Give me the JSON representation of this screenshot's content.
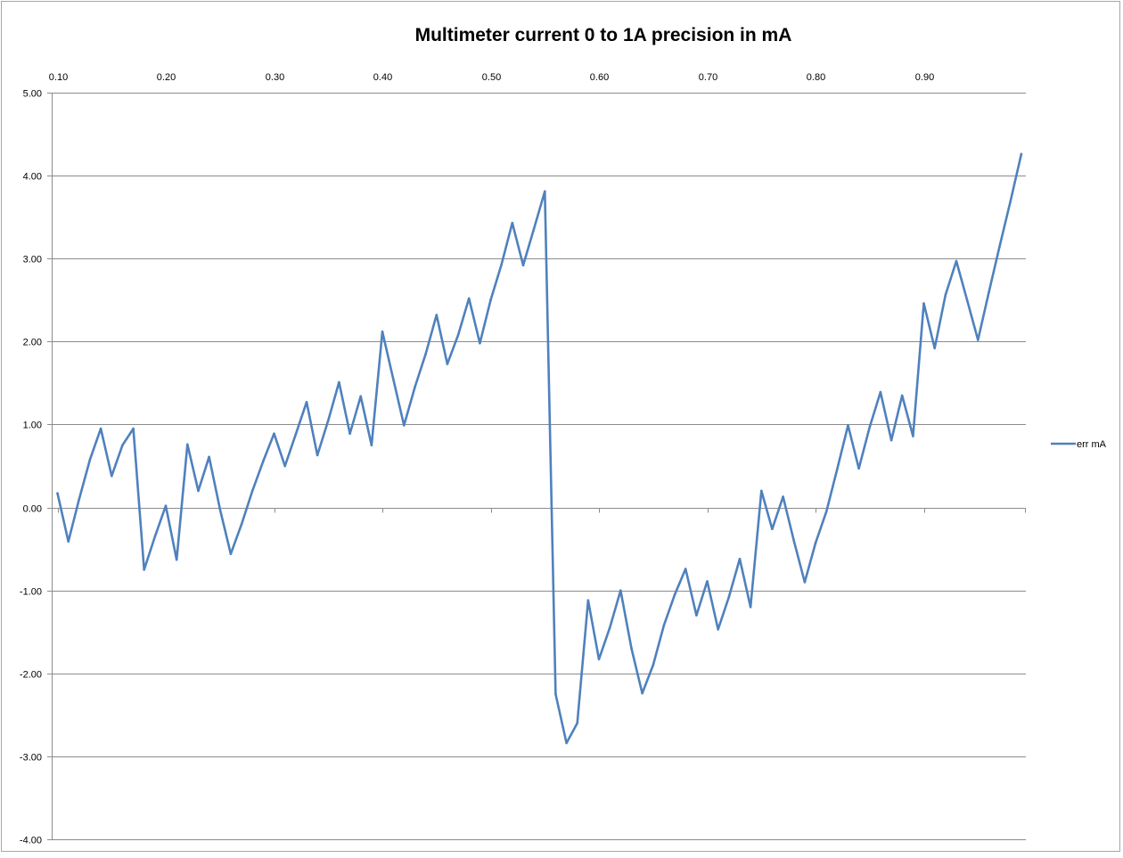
{
  "chart_data": {
    "type": "line",
    "title": "Multimeter current 0 to 1A precision in mA",
    "xlabel": "",
    "ylabel": "",
    "x_axis_position": "top",
    "ylim": [
      -4,
      5
    ],
    "y_ticks": [
      "5.00",
      "4.00",
      "3.00",
      "2.00",
      "1.00",
      "0.00",
      "-1.00",
      "-2.00",
      "-3.00",
      "-4.00"
    ],
    "x_ticks": [
      "0.10",
      "0.20",
      "0.30",
      "0.40",
      "0.50",
      "0.60",
      "0.70",
      "0.80",
      "0.90"
    ],
    "grid": "horizontal",
    "legend_position": "right",
    "line_color": "#4f81bd",
    "series": [
      {
        "name": "err mA",
        "x": [
          0.1,
          0.11,
          0.12,
          0.13,
          0.14,
          0.15,
          0.16,
          0.17,
          0.18,
          0.19,
          0.2,
          0.21,
          0.22,
          0.23,
          0.24,
          0.25,
          0.26,
          0.27,
          0.28,
          0.29,
          0.3,
          0.31,
          0.32,
          0.33,
          0.34,
          0.35,
          0.36,
          0.37,
          0.38,
          0.39,
          0.4,
          0.41,
          0.42,
          0.43,
          0.44,
          0.45,
          0.46,
          0.47,
          0.48,
          0.49,
          0.5,
          0.51,
          0.52,
          0.53,
          0.54,
          0.55,
          0.56,
          0.57,
          0.58,
          0.59,
          0.6,
          0.61,
          0.62,
          0.63,
          0.64,
          0.65,
          0.66,
          0.67,
          0.68,
          0.69,
          0.7,
          0.71,
          0.72,
          0.73,
          0.74,
          0.75,
          0.76,
          0.77,
          0.78,
          0.79,
          0.8,
          0.81,
          0.82,
          0.83,
          0.84,
          0.85,
          0.86,
          0.87,
          0.88,
          0.89,
          0.9,
          0.91,
          0.92,
          0.93,
          0.94,
          0.95,
          0.96,
          0.97,
          0.98,
          0.99
        ],
        "values": [
          0.17,
          -0.41,
          0.1,
          0.58,
          0.95,
          0.38,
          0.75,
          0.95,
          -0.75,
          -0.35,
          0.02,
          -0.63,
          0.76,
          0.2,
          0.61,
          -0.02,
          -0.56,
          -0.2,
          0.2,
          0.56,
          0.89,
          0.5,
          0.88,
          1.27,
          0.63,
          1.05,
          1.51,
          0.89,
          1.34,
          0.75,
          2.12,
          1.55,
          0.99,
          1.45,
          1.85,
          2.32,
          1.73,
          2.08,
          2.52,
          1.98,
          2.5,
          2.93,
          3.43,
          2.92,
          3.36,
          3.81,
          -2.25,
          -2.84,
          -2.6,
          -1.12,
          -1.83,
          -1.45,
          -1.0,
          -1.7,
          -2.24,
          -1.9,
          -1.42,
          -1.05,
          -0.74,
          -1.3,
          -0.89,
          -1.47,
          -1.08,
          -0.62,
          -1.2,
          0.2,
          -0.26,
          0.13,
          -0.4,
          -0.9,
          -0.43,
          -0.05,
          0.46,
          0.99,
          0.47,
          0.97,
          1.39,
          0.81,
          1.35,
          0.86,
          2.46,
          1.92,
          2.56,
          2.97,
          2.5,
          2.02,
          2.59,
          3.15,
          3.69,
          4.26
        ]
      }
    ]
  }
}
